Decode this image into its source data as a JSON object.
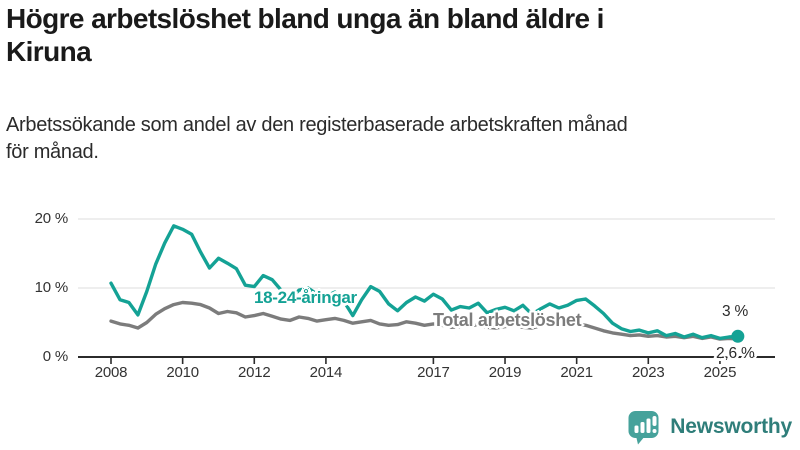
{
  "header": {
    "title": "Högre arbetslöshet bland unga än bland äldre i\nKiruna",
    "subtitle": "Arbetssökande som andel av den registerbaserade arbetskraften månad\nför månad."
  },
  "chart_data": {
    "type": "line",
    "title": "Högre arbetslöshet bland unga än bland äldre i Kiruna",
    "xlabel": "",
    "ylabel": "Arbetssökande som andel av den registerbaserade arbetskraften",
    "x_unit": "year",
    "x_start": 2008.0,
    "x_step": 0.25,
    "x_end": 2025.5,
    "xlim": [
      2007.1,
      2026.6
    ],
    "ylim": [
      0,
      21
    ],
    "grid": "horizontal-only",
    "x_ticks": [
      2008,
      2010,
      2012,
      2014,
      2017,
      2019,
      2021,
      2023,
      2025
    ],
    "x_tick_labels": [
      "2008",
      "2010",
      "2012",
      "2014",
      "2017",
      "2019",
      "2021",
      "2023",
      "2025"
    ],
    "y_ticks": [
      0,
      10,
      20
    ],
    "y_tick_labels": [
      "0 %",
      "10 %",
      "20 %"
    ],
    "axis_color": "#2b2b2b",
    "grid_color": "#dcdcdc",
    "series": [
      {
        "name": "18-24-åringar",
        "color": "#14a295",
        "end_label": "3 %",
        "end_value": 3.0,
        "end_marker": true,
        "values": [
          10.7,
          8.3,
          7.9,
          6.1,
          9.5,
          13.5,
          16.5,
          19.0,
          18.5,
          17.8,
          15.2,
          12.9,
          14.3,
          13.6,
          12.8,
          10.4,
          10.2,
          11.8,
          11.2,
          9.7,
          8.5,
          9.7,
          10.0,
          9.1,
          8.8,
          9.4,
          8.1,
          6.0,
          8.3,
          10.2,
          9.5,
          7.7,
          6.7,
          7.9,
          8.7,
          8.1,
          9.1,
          8.4,
          6.8,
          7.3,
          7.1,
          7.8,
          6.4,
          6.9,
          7.2,
          6.7,
          7.5,
          6.2,
          7.0,
          7.7,
          7.1,
          7.5,
          8.2,
          8.4,
          7.4,
          6.3,
          4.9,
          4.1,
          3.7,
          3.9,
          3.5,
          3.8,
          3.1,
          3.4,
          2.9,
          3.3,
          2.8,
          3.1,
          2.7,
          2.9,
          3.0
        ]
      },
      {
        "name": "Total arbetslöshet",
        "color": "#7c7c7c",
        "end_label": "2,6 %",
        "end_value": 2.6,
        "end_marker": false,
        "values": [
          5.2,
          4.8,
          4.6,
          4.2,
          5.0,
          6.2,
          7.0,
          7.6,
          7.9,
          7.8,
          7.6,
          7.1,
          6.3,
          6.6,
          6.4,
          5.8,
          6.0,
          6.3,
          5.9,
          5.5,
          5.3,
          5.8,
          5.6,
          5.2,
          5.4,
          5.6,
          5.3,
          4.9,
          5.1,
          5.3,
          4.8,
          4.6,
          4.7,
          5.1,
          4.9,
          4.6,
          4.8,
          4.6,
          4.3,
          4.4,
          4.5,
          4.7,
          4.3,
          4.2,
          4.4,
          4.6,
          4.3,
          4.2,
          4.5,
          5.0,
          4.8,
          4.7,
          4.8,
          4.6,
          4.2,
          3.8,
          3.5,
          3.3,
          3.1,
          3.2,
          3.0,
          3.1,
          2.9,
          3.0,
          2.8,
          3.0,
          2.7,
          2.9,
          2.6,
          2.7,
          2.6
        ]
      }
    ]
  },
  "logo": {
    "name": "Newsworthy",
    "icon": "newsworthy-chart-bubble-icon",
    "text_color": "#2f7e7a",
    "icon_color": "#46a29b"
  }
}
